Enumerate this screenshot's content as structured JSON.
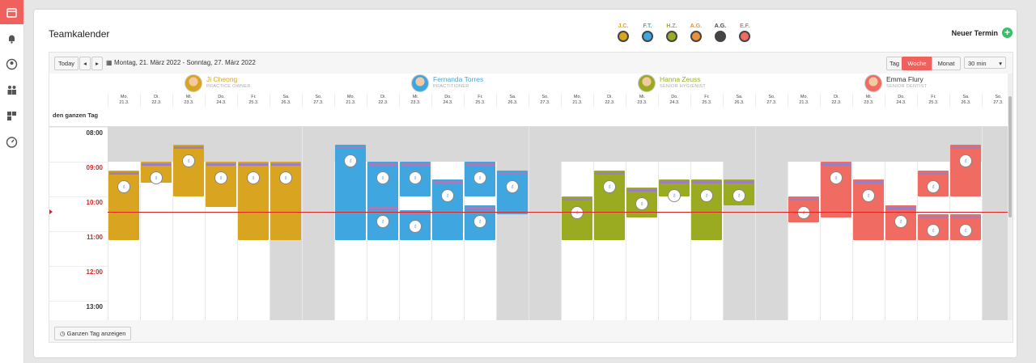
{
  "sidebar": {
    "items": [
      {
        "icon": "calendar-icon",
        "active": true
      },
      {
        "icon": "bell-icon",
        "active": false
      },
      {
        "icon": "user-icon",
        "active": false
      },
      {
        "icon": "team-icon",
        "active": false
      },
      {
        "icon": "grid-icon",
        "active": false
      },
      {
        "icon": "dashboard-icon",
        "active": false
      }
    ]
  },
  "header": {
    "title": "Teamkalender",
    "new_label": "Neuer Termin"
  },
  "legend": [
    {
      "initials": "J.C.",
      "color": "#d9a520"
    },
    {
      "initials": "F.T.",
      "color": "#3fa6e0"
    },
    {
      "initials": "H.Z.",
      "color": "#9aab22"
    },
    {
      "initials": "A.G.",
      "color": "#e8913a"
    },
    {
      "initials": "A.G.",
      "color": "#444444"
    },
    {
      "initials": "E.F.",
      "color": "#f06b62"
    }
  ],
  "toolbar": {
    "today": "Today",
    "prev": "◂",
    "next": "▸",
    "range": "Montag, 21. März 2022 - Sonntag, 27. März 2022",
    "views": [
      "Tag",
      "Woche",
      "Monat"
    ],
    "selected_view": "Woche",
    "interval": "30 min"
  },
  "persons": [
    {
      "name": "Ji Cheong",
      "role": "PRACTICE OWNER",
      "color": "#d9a520",
      "events": [
        [
          1,
          1,
          2.2
        ],
        [
          2,
          0,
          3
        ],
        [
          3,
          1,
          3.6
        ],
        [
          4,
          1,
          5.5
        ],
        [
          5,
          1,
          5.5
        ],
        [
          0,
          1.5,
          5.5
        ]
      ]
    },
    {
      "name": "Fernanda Torres",
      "role": "PRACTITIONER",
      "color": "#3fa6e0",
      "events": [
        [
          0,
          0,
          5.5
        ],
        [
          1,
          1,
          5.5
        ],
        [
          2,
          1,
          3
        ],
        [
          3,
          2,
          5.5
        ],
        [
          4,
          1,
          3
        ],
        [
          5,
          1.5,
          4
        ],
        [
          1,
          3.5,
          5.5
        ],
        [
          2,
          3.8,
          5.5
        ],
        [
          4,
          3.5,
          5.5
        ]
      ]
    },
    {
      "name": "Hanna Zeuss",
      "role": "SENIOR HYGIENIST",
      "color": "#9aab22",
      "events": [
        [
          0,
          3,
          5.5
        ],
        [
          1,
          1.5,
          5.5
        ],
        [
          2,
          2.5,
          4.2
        ],
        [
          3,
          2,
          3
        ],
        [
          4,
          2,
          5.5
        ],
        [
          5,
          2,
          3.5
        ]
      ]
    },
    {
      "name": "Emma Flury",
      "role": "SENIOR DENTIST",
      "color": "#f06b62",
      "events": [
        [
          0,
          3,
          4.5
        ],
        [
          1,
          1,
          4.2
        ],
        [
          2,
          2,
          5.5
        ],
        [
          3,
          3.5,
          5.5
        ],
        [
          4,
          1.5,
          3
        ],
        [
          5,
          0,
          3
        ],
        [
          4,
          4,
          5.5
        ],
        [
          5,
          4,
          5.5
        ]
      ]
    }
  ],
  "days": [
    {
      "d": "Mo.",
      "n": "21.3."
    },
    {
      "d": "Di.",
      "n": "22.3."
    },
    {
      "d": "Mi.",
      "n": "23.3."
    },
    {
      "d": "Do.",
      "n": "24.3."
    },
    {
      "d": "Fr.",
      "n": "25.3."
    },
    {
      "d": "Sa.",
      "n": "26.3."
    },
    {
      "d": "So.",
      "n": "27.3."
    }
  ],
  "allday_label": "den ganzen Tag",
  "times": [
    {
      "t": "08:00",
      "red": false
    },
    {
      "t": "09:00",
      "red": true
    },
    {
      "t": "10:00",
      "red": true
    },
    {
      "t": "11:00",
      "red": true
    },
    {
      "t": "12:00",
      "red": true
    },
    {
      "t": "13:00",
      "red": false
    }
  ],
  "footer": {
    "show_all_day": "Ganzen Tag anzeigen"
  }
}
